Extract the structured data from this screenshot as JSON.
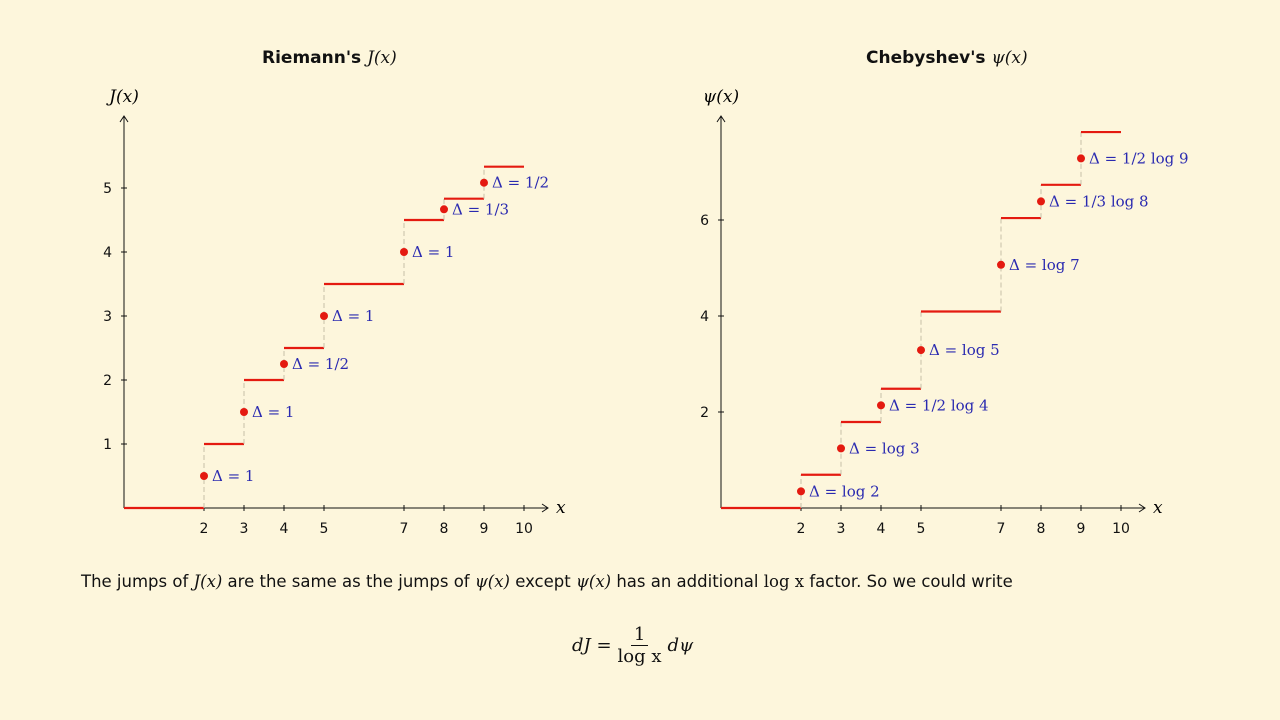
{
  "titles": {
    "left_prefix": "Riemann's",
    "left_fn": "J(x)",
    "right_prefix": "Chebyshev's",
    "right_fn": "ψ(x)"
  },
  "colors": {
    "background": "#fdf6dc",
    "step": "#e41a10",
    "dot": "#e41a10",
    "label": "#2a2ab0",
    "axis": "#111111",
    "jump_line": "#c8c0a8"
  },
  "chart_data": [
    {
      "type": "step",
      "title": "Riemann's J(x)",
      "ylabel": "J(x)",
      "xlabel": "x",
      "xlim": [
        0,
        10.5
      ],
      "ylim": [
        0,
        6
      ],
      "xticks": [
        2,
        3,
        4,
        5,
        7,
        8,
        9,
        10
      ],
      "yticks": [
        1,
        2,
        3,
        4,
        5
      ],
      "steps": [
        {
          "x0": 0,
          "x1": 2,
          "y": 0
        },
        {
          "x0": 2,
          "x1": 3,
          "y": 1
        },
        {
          "x0": 3,
          "x1": 4,
          "y": 2
        },
        {
          "x0": 4,
          "x1": 5,
          "y": 2.5
        },
        {
          "x0": 5,
          "x1": 7,
          "y": 3.5
        },
        {
          "x0": 7,
          "x1": 8,
          "y": 4.5
        },
        {
          "x0": 8,
          "x1": 9,
          "y": 4.833
        },
        {
          "x0": 9,
          "x1": 10,
          "y": 5.333
        }
      ],
      "points": [
        {
          "x": 2,
          "y": 0.5,
          "label": "Δ = 1"
        },
        {
          "x": 3,
          "y": 1.5,
          "label": "Δ = 1"
        },
        {
          "x": 4,
          "y": 2.25,
          "label": "Δ = 1/2"
        },
        {
          "x": 5,
          "y": 3,
          "label": "Δ = 1"
        },
        {
          "x": 7,
          "y": 4,
          "label": "Δ = 1"
        },
        {
          "x": 8,
          "y": 4.667,
          "label": "Δ = 1/3"
        },
        {
          "x": 9,
          "y": 5.083,
          "label": "Δ = 1/2"
        }
      ]
    },
    {
      "type": "step",
      "title": "Chebyshev's ψ(x)",
      "ylabel": "ψ(x)",
      "xlabel": "x",
      "xlim": [
        0,
        10.5
      ],
      "ylim": [
        0,
        8
      ],
      "xticks": [
        2,
        3,
        4,
        5,
        7,
        8,
        9,
        10
      ],
      "yticks": [
        2,
        4,
        6
      ],
      "steps": [
        {
          "x0": 0,
          "x1": 2,
          "y": 0
        },
        {
          "x0": 2,
          "x1": 3,
          "y": 0.693
        },
        {
          "x0": 3,
          "x1": 4,
          "y": 1.792
        },
        {
          "x0": 4,
          "x1": 5,
          "y": 2.485
        },
        {
          "x0": 5,
          "x1": 7,
          "y": 4.094
        },
        {
          "x0": 7,
          "x1": 8,
          "y": 6.04
        },
        {
          "x0": 8,
          "x1": 9,
          "y": 6.733
        },
        {
          "x0": 9,
          "x1": 10,
          "y": 7.832
        }
      ],
      "points": [
        {
          "x": 2,
          "y": 0.347,
          "label": "Δ = log 2"
        },
        {
          "x": 3,
          "y": 1.242,
          "label": "Δ = log 3"
        },
        {
          "x": 4,
          "y": 2.139,
          "label": "Δ = 1/2 log 4"
        },
        {
          "x": 5,
          "y": 3.29,
          "label": "Δ = log 5"
        },
        {
          "x": 7,
          "y": 5.067,
          "label": "Δ = log 7"
        },
        {
          "x": 8,
          "y": 6.387,
          "label": "Δ = 1/3 log 8"
        },
        {
          "x": 9,
          "y": 7.283,
          "label": "Δ = 1/2 log 9"
        }
      ]
    }
  ],
  "caption": {
    "p1": "The jumps of ",
    "j": "J(x)",
    "p2": " are the same as the jumps of ",
    "psi1": "ψ(x)",
    "p3": " except ",
    "psi2": "ψ(x)",
    "p4": " has an additional ",
    "logx": "log x",
    "p5": " factor. So we could write"
  },
  "equation": {
    "lhs": "dJ =",
    "num": "1",
    "den": "log x",
    "rhs": "dψ"
  }
}
